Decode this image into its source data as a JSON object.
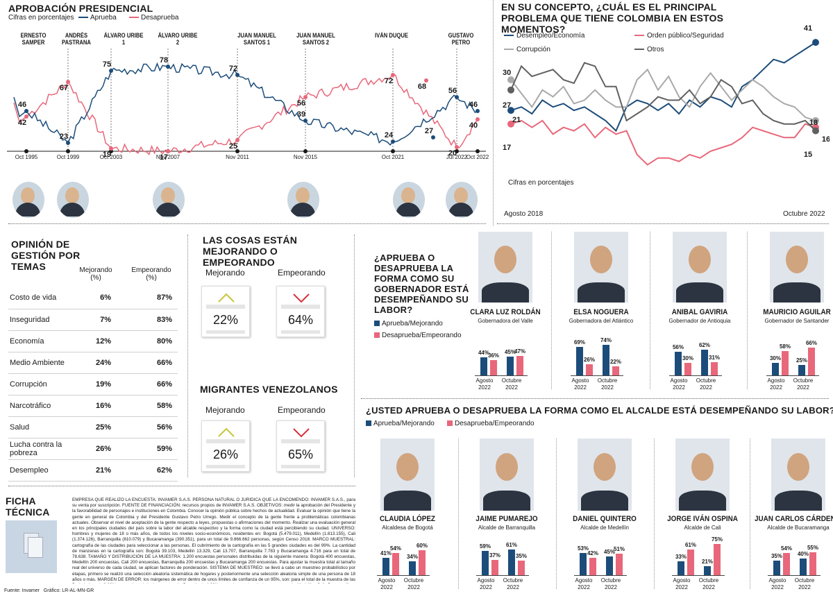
{
  "approval": {
    "title": "APROBACIÓN PRESIDENCIAL",
    "units": "Cifras en porcentajes",
    "legend_approve": "Aprueba",
    "legend_disapprove": "Desaprueba",
    "presidents": [
      {
        "name": "ERNESTO SAMPER",
        "period": "Oct 1995"
      },
      {
        "name": "ANDRÉS PASTRANA",
        "period": "Oct 1999"
      },
      {
        "name": "ÁLVARO URIBE 1",
        "period": "Oct 2003"
      },
      {
        "name": "ÁLVARO URIBE 2",
        "period": "Nov 2007"
      },
      {
        "name": "JUAN MANUEL SANTOS 1",
        "period": "Nov 2011"
      },
      {
        "name": "JUAN MANUEL SANTOS 2",
        "period": "Nov 2015"
      },
      {
        "name": "IVÁN DUQUE",
        "period": "Oct 2021"
      },
      {
        "name": "GUSTAVO PETRO",
        "period": "Jul 2022"
      }
    ],
    "last_period": "Oct 2022",
    "labels": [
      "46",
      "42",
      "67",
      "23",
      "75",
      "19",
      "78",
      "17",
      "72",
      "25",
      "56",
      "39",
      "72",
      "24",
      "68",
      "27",
      "56",
      "20",
      "46",
      "40"
    ]
  },
  "problem": {
    "title": "EN SU CONCEPTO, ¿CUÁL ES EL PRINCIPAL PROBLEMA QUE TIENE COLOMBIA EN ESTOS MOMENTOS?",
    "units": "Cifras en porcentajes",
    "x_start": "Agosto 2018",
    "x_end": "Octubre 2022",
    "legend": [
      "Desempleo/Economía",
      "Orden público/Seguridad",
      "Corrupción",
      "Otros"
    ],
    "start_labels": [
      "30",
      "27",
      "21",
      "17"
    ],
    "end_labels": [
      "41",
      "18",
      "16",
      "15"
    ]
  },
  "issues": {
    "title": "OPINIÓN DE GESTIÓN POR TEMAS",
    "col1": "Mejorando (%)",
    "col2": "Empeorando (%)",
    "rows": [
      {
        "tema": "Costo de vida",
        "mej": "6%",
        "emp": "87%"
      },
      {
        "tema": "Inseguridad",
        "mej": "7%",
        "emp": "83%"
      },
      {
        "tema": "Economía",
        "mej": "12%",
        "emp": "80%"
      },
      {
        "tema": "Medio Ambiente",
        "mej": "24%",
        "emp": "66%"
      },
      {
        "tema": "Corrupción",
        "mej": "19%",
        "emp": "66%"
      },
      {
        "tema": "Narcotráfico",
        "mej": "16%",
        "emp": "58%"
      },
      {
        "tema": "Salud",
        "mej": "25%",
        "emp": "56%"
      },
      {
        "tema": "Lucha contra la pobreza",
        "mej": "26%",
        "emp": "59%"
      },
      {
        "tema": "Desempleo",
        "mej": "21%",
        "emp": "62%"
      }
    ]
  },
  "things": {
    "title": "LAS COSAS ESTÁN MEJORANDO O EMPEORANDO",
    "mej_label": "Mejorando",
    "emp_label": "Empeorando",
    "mej": "22%",
    "emp": "64%"
  },
  "migrants": {
    "title": "MIGRANTES VENEZOLANOS",
    "mej_label": "Mejorando",
    "emp_label": "Empeorando",
    "mej": "26%",
    "emp": "65%"
  },
  "governors": {
    "title": "¿APRUEBA O DESAPRUEBA LA FORMA COMO SU GOBERNADOR ESTÁ DESEMPEÑANDO SU LABOR?",
    "legend_a": "Aprueba/Mejorando",
    "legend_d": "Desaprueba/Empeorando",
    "people": [
      {
        "name": "CLARA LUZ ROLDÁN",
        "role": "Gobernadora del Valle",
        "vals": [
          "44%",
          "36%",
          "45%",
          "47%"
        ]
      },
      {
        "name": "ELSA NOGUERA",
        "role": "Gobernadora del Atlántico",
        "vals": [
          "69%",
          "26%",
          "74%",
          "22%"
        ]
      },
      {
        "name": "ANIBAL GAVIRIA",
        "role": "Gobernador de Antioquia",
        "vals": [
          "56%",
          "30%",
          "62%",
          "31%"
        ]
      },
      {
        "name": "MAURICIO AGUILAR",
        "role": "Gobernador de Santander",
        "vals": [
          "30%",
          "58%",
          "25%",
          "66%"
        ]
      }
    ],
    "x1": "Agosto 2022",
    "x2": "Octubre 2022"
  },
  "mayors": {
    "title": "¿USTED APRUEBA O  DESAPRUEBA LA FORMA COMO EL ALCALDE ESTÁ DESEMPEÑANDO SU LABOR?",
    "legend_a": "Aprueba/Mejorando",
    "legend_d": "Desaprueba/Empeorando",
    "people": [
      {
        "name": "CLAUDIA LÓPEZ",
        "role": "Alcaldesa de Bogotá",
        "vals": [
          "41%",
          "54%",
          "34%",
          "60%"
        ]
      },
      {
        "name": "JAIME PUMAREJO",
        "role": "Alcalde de Barranquilla",
        "vals": [
          "59%",
          "37%",
          "61%",
          "35%"
        ]
      },
      {
        "name": "DANIEL QUINTERO",
        "role": "Alcalde de Medellín",
        "vals": [
          "53%",
          "42%",
          "45%",
          "51%"
        ]
      },
      {
        "name": "JORGE IVÁN OSPINA",
        "role": "Alcalde de Cali",
        "vals": [
          "33%",
          "61%",
          "21%",
          "75%"
        ]
      },
      {
        "name": "JUAN CARLOS CÁRDENAS",
        "role": "Alcalde de Bucaramanga",
        "vals": [
          "35%",
          "54%",
          "40%",
          "55%"
        ]
      }
    ],
    "x1": "Agosto 2022",
    "x2": "Octubre 2022"
  },
  "ficha": {
    "title": "FICHA TÉCNICA",
    "text": "EMPRESA QUE REALIZÓ LA ENCUESTA: INVAMER S.A.S. PERSONA NATURAL O JURÍDICA QUE LA ENCOMENDÓ: INVAMER S.A.S., para su venta por suscripción. FUENTE DE FINANCIACIÓN: recursos propios de INVAMER S.A.S. OBJETIVOS: medir la aprobación del Presidente y la favorabilidad de personajes e instituciones en Colombia. Conocer la opinión pública sobre hechos de actualidad. Evaluar la opinión que tiene la gente en general de Colombia y del Presidente Gustavo Petro Urrego. Medir el concepto de la gente frente a problemáticas colombianas actuales. Observar el nivel de aceptación de la gente respecto a leyes, propuestas o afirmaciones del momento. Realizar una evaluación general en los principales ciudades del país sobre la labor del alcalde respectivo y la forma como la ciudad está percibiendo su ciudad. UNIVERSO: hombres y mujeres de 18 o más años, de todos los niveles socio-económicos, residentes en: Bogotá (5.479.011), Medellín (1.813.155), Cali (1.374.126), Barranquilla (810.079) y Bucaramanga (390.351), para un total de 9.866.662 personas, según Censo 2018. MARCO MUESTRAL: cartografía de las ciudades para seleccionar a las personas. El cubrimiento de la cartografía en las 5 grandes ciudades es del 99%. La cantidad de manzanas en la cartografía son: Bogotá 39.103, Medellín 13.329, Cali 13.707, Barranquilla 7.783 y Bucaramanga 4.716 para un total de 78.638. TAMAÑO Y DISTRIBUCIÓN DE LA MUESTRA: 1.200 encuestas personales distribuidas de la siguiente manera: Bogotá 400 encuestas, Medellín 200 encuestas, Cali 200 encuestas, Barranquilla 200 encuestas y Bucaramanga 200 encuestas. Para ajustar la muestra total al tamaño real del universo de cada ciudad, se aplican factores de ponderación. SISTEMA DE MUESTREO: se llevó a cabo un muestreo probabilístico por etapas, primero se realizó una selección aleatoria sistemática de hogares y posteriormente una selección aleatoria simple de una persona de 18 años o más. MARGEN DE ERROR: los márgenes de error dentro de unos límites de confianza de un 95%, son: para el total de la muestra de las 5 ciudades +/- 2,83%; para el total de la muestra de Bogotá +/- 4,90%; para los totales de las muestras de Medellín, Cali, Barranquilla y Bucaramanga +/- 6,93%"
  },
  "footer": "Fuente: Invamer   Gráfico: LR-AL-MN-GR",
  "chart_data": [
    {
      "type": "line",
      "title": "APROBACIÓN PRESIDENCIAL",
      "ylabel": "Cifras en porcentajes",
      "x": [
        "Oct 1995",
        "Oct 1999",
        "Oct 2003",
        "Nov 2007",
        "Nov 2011",
        "Nov 2015",
        "Oct 2021",
        "Jul 2022",
        "Oct 2022"
      ],
      "series": [
        {
          "name": "Aprueba",
          "values": [
            46,
            23,
            75,
            78,
            72,
            39,
            24,
            56,
            46
          ]
        },
        {
          "name": "Desaprueba",
          "values": [
            42,
            67,
            19,
            17,
            25,
            56,
            72,
            20,
            40
          ]
        }
      ],
      "color_approve": "#1c4c79",
      "color_disapprove": "#e8677a"
    },
    {
      "type": "line",
      "title": "EN SU CONCEPTO, ¿CUÁL ES EL PRINCIPAL PROBLEMA QUE TIENE COLOMBIA EN ESTOS MOMENTOS?",
      "ylabel": "Cifras en porcentajes",
      "x_start": "Agosto 2018",
      "x_end": "Octubre 2022",
      "series": [
        {
          "name": "Desempleo/Economía",
          "values": [
            21,
            22,
            20,
            24,
            22,
            23,
            21,
            22,
            20,
            18,
            15,
            22,
            24,
            23,
            21,
            23,
            20,
            24,
            22,
            25,
            24,
            22,
            28,
            30,
            33,
            36,
            35,
            37,
            39,
            41
          ]
        },
        {
          "name": "Orden público/Seguridad",
          "values": [
            17,
            18,
            16,
            18,
            14,
            16,
            15,
            17,
            13,
            16,
            14,
            15,
            8,
            5,
            7,
            7,
            6,
            8,
            7,
            9,
            10,
            11,
            13,
            16,
            15,
            14,
            13,
            13,
            17,
            16
          ]
        },
        {
          "name": "Corrupción",
          "values": [
            30,
            26,
            22,
            27,
            25,
            28,
            23,
            24,
            27,
            24,
            22,
            22,
            30,
            33,
            27,
            31,
            25,
            22,
            28,
            32,
            28,
            24,
            27,
            30,
            28,
            25,
            23,
            22,
            19,
            18
          ]
        },
        {
          "name": "Otros",
          "values": [
            27,
            34,
            31,
            32,
            33,
            30,
            29,
            35,
            34,
            28,
            28,
            18,
            20,
            22,
            25,
            24,
            24,
            27,
            23,
            25,
            30,
            28,
            23,
            24,
            20,
            18,
            17,
            17,
            18,
            15
          ]
        }
      ],
      "colors": [
        "#1c4c79",
        "#e8677a",
        "#a9a9a9",
        "#606060"
      ]
    }
  ]
}
